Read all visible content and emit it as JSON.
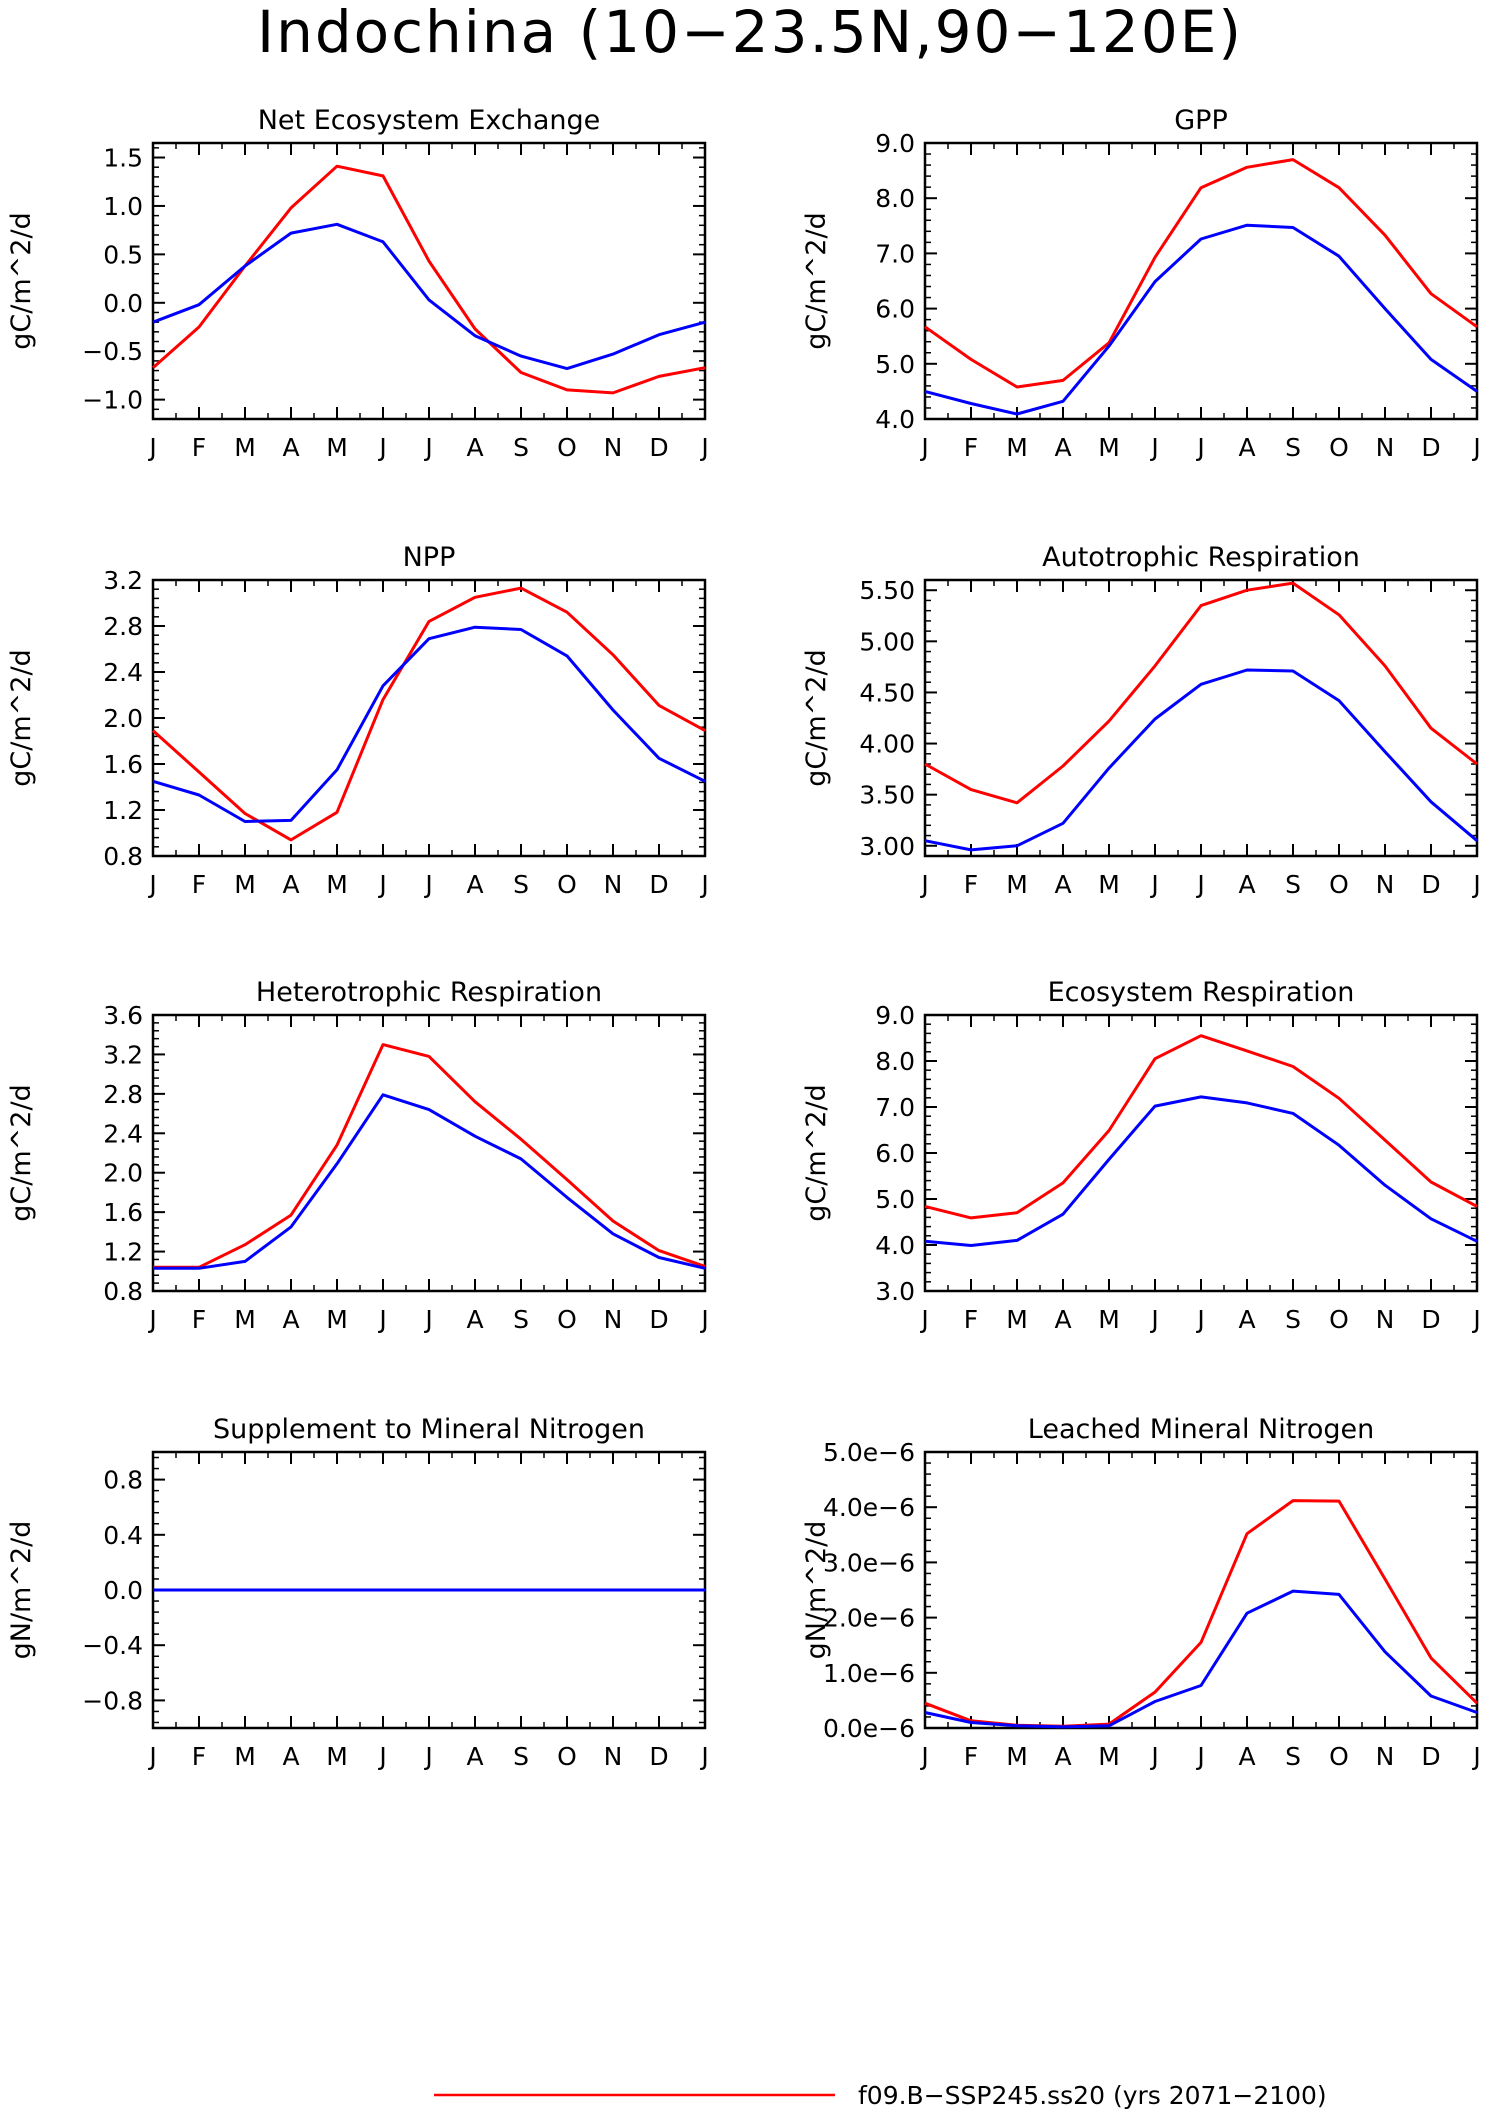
{
  "title": "Indochina (10−23.5N,90−120E)",
  "colors": {
    "series_a": "#ff0000",
    "series_b": "#0000ff",
    "axis": "#000000"
  },
  "legend": {
    "series_a_label": "f09.B−SSP245.ss20 (yrs 2071−2100)"
  },
  "months": [
    "J",
    "F",
    "M",
    "A",
    "M",
    "J",
    "J",
    "A",
    "S",
    "O",
    "N",
    "D",
    "J"
  ],
  "chart_data": [
    {
      "type": "line",
      "title": "Net Ecosystem Exchange",
      "ylabel": "gC/m^2/d",
      "ylim": [
        -1.2,
        1.65
      ],
      "yticks": [
        -1.0,
        -0.5,
        0.0,
        0.5,
        1.0,
        1.5
      ],
      "yticklabels": [
        "−1.0",
        "−0.5",
        "0.0",
        "0.5",
        "1.0",
        "1.5"
      ],
      "series": [
        {
          "color": "red",
          "values": [
            -0.67,
            -0.25,
            0.38,
            0.98,
            1.41,
            1.31,
            0.43,
            -0.27,
            -0.72,
            -0.9,
            -0.93,
            -0.76,
            -0.67
          ]
        },
        {
          "color": "blue",
          "values": [
            -0.2,
            -0.02,
            0.38,
            0.72,
            0.81,
            0.63,
            0.03,
            -0.34,
            -0.55,
            -0.68,
            -0.53,
            -0.33,
            -0.2
          ]
        }
      ]
    },
    {
      "type": "line",
      "title": "GPP",
      "ylabel": "gC/m^2/d",
      "ylim": [
        4.0,
        9.0
      ],
      "yticks": [
        4.0,
        5.0,
        6.0,
        7.0,
        8.0,
        9.0
      ],
      "yticklabels": [
        "4.0",
        "5.0",
        "6.0",
        "7.0",
        "8.0",
        "9.0"
      ],
      "series": [
        {
          "color": "red",
          "values": [
            5.67,
            5.08,
            4.58,
            4.7,
            5.38,
            6.93,
            8.19,
            8.56,
            8.7,
            8.19,
            7.33,
            6.27,
            5.67
          ]
        },
        {
          "color": "blue",
          "values": [
            4.5,
            4.28,
            4.09,
            4.32,
            5.32,
            6.49,
            7.26,
            7.51,
            7.47,
            6.95,
            6.0,
            5.08,
            4.5
          ]
        }
      ]
    },
    {
      "type": "line",
      "title": "NPP",
      "ylabel": "gC/m^2/d",
      "ylim": [
        0.8,
        3.2
      ],
      "yticks": [
        0.8,
        1.2,
        1.6,
        2.0,
        2.4,
        2.8,
        3.2
      ],
      "yticklabels": [
        "0.8",
        "1.2",
        "1.6",
        "2.0",
        "2.4",
        "2.8",
        "3.2"
      ],
      "series": [
        {
          "color": "red",
          "values": [
            1.89,
            1.53,
            1.17,
            0.94,
            1.18,
            2.16,
            2.84,
            3.05,
            3.13,
            2.92,
            2.55,
            2.11,
            1.89
          ]
        },
        {
          "color": "blue",
          "values": [
            1.45,
            1.33,
            1.1,
            1.11,
            1.55,
            2.28,
            2.69,
            2.79,
            2.77,
            2.54,
            2.07,
            1.65,
            1.45
          ]
        }
      ]
    },
    {
      "type": "line",
      "title": "Autotrophic Respiration",
      "ylabel": "gC/m^2/d",
      "ylim": [
        2.9,
        5.6
      ],
      "yticks": [
        3.0,
        3.5,
        4.0,
        4.5,
        5.0,
        5.5
      ],
      "yticklabels": [
        "3.00",
        "3.50",
        "4.00",
        "4.50",
        "5.00",
        "5.50"
      ],
      "series": [
        {
          "color": "red",
          "values": [
            3.8,
            3.55,
            3.42,
            3.78,
            4.22,
            4.76,
            5.35,
            5.5,
            5.57,
            5.26,
            4.76,
            4.15,
            3.8
          ]
        },
        {
          "color": "blue",
          "values": [
            3.05,
            2.96,
            3.0,
            3.22,
            3.76,
            4.24,
            4.58,
            4.72,
            4.71,
            4.42,
            3.92,
            3.43,
            3.05
          ]
        }
      ]
    },
    {
      "type": "line",
      "title": "Heterotrophic Respiration",
      "ylabel": "gC/m^2/d",
      "ylim": [
        0.8,
        3.6
      ],
      "yticks": [
        0.8,
        1.2,
        1.6,
        2.0,
        2.4,
        2.8,
        3.2,
        3.6
      ],
      "yticklabels": [
        "0.8",
        "1.2",
        "1.6",
        "2.0",
        "2.4",
        "2.8",
        "3.2",
        "3.6"
      ],
      "series": [
        {
          "color": "red",
          "values": [
            1.04,
            1.04,
            1.27,
            1.57,
            2.28,
            3.3,
            3.18,
            2.72,
            2.34,
            1.93,
            1.51,
            1.21,
            1.05
          ]
        },
        {
          "color": "blue",
          "values": [
            1.03,
            1.03,
            1.1,
            1.45,
            2.09,
            2.79,
            2.64,
            2.37,
            2.14,
            1.75,
            1.38,
            1.14,
            1.03
          ]
        }
      ]
    },
    {
      "type": "line",
      "title": "Ecosystem Respiration",
      "ylabel": "gC/m^2/d",
      "ylim": [
        3.0,
        9.0
      ],
      "yticks": [
        3.0,
        4.0,
        5.0,
        6.0,
        7.0,
        8.0,
        9.0
      ],
      "yticklabels": [
        "3.0",
        "4.0",
        "5.0",
        "6.0",
        "7.0",
        "8.0",
        "9.0"
      ],
      "series": [
        {
          "color": "red",
          "values": [
            4.84,
            4.59,
            4.7,
            5.35,
            6.49,
            8.05,
            8.55,
            8.22,
            7.88,
            7.19,
            6.28,
            5.37,
            4.84
          ]
        },
        {
          "color": "blue",
          "values": [
            4.08,
            3.99,
            4.1,
            4.67,
            5.86,
            7.02,
            7.22,
            7.09,
            6.86,
            6.17,
            5.3,
            4.57,
            4.08
          ]
        }
      ]
    },
    {
      "type": "line",
      "title": "Supplement to Mineral Nitrogen",
      "ylabel": "gN/m^2/d",
      "ylim": [
        -1.0,
        1.0
      ],
      "yticks": [
        -0.8,
        -0.4,
        0.0,
        0.4,
        0.8
      ],
      "yticklabels": [
        "−0.8",
        "−0.4",
        "0.0",
        "0.4",
        "0.8"
      ],
      "series": [
        {
          "color": "red",
          "values": [
            0,
            0,
            0,
            0,
            0,
            0,
            0,
            0,
            0,
            0,
            0,
            0,
            0
          ]
        },
        {
          "color": "blue",
          "values": [
            0,
            0,
            0,
            0,
            0,
            0,
            0,
            0,
            0,
            0,
            0,
            0,
            0
          ]
        }
      ]
    },
    {
      "type": "line",
      "title": "Leached Mineral Nitrogen",
      "ylabel": "gN/m^2/d",
      "ylim": [
        0.0,
        5e-06
      ],
      "yticks": [
        0.0,
        1e-06,
        2e-06,
        3e-06,
        4e-06,
        5e-06
      ],
      "yticklabels": [
        "0.0e−6",
        "1.0e−6",
        "2.0e−6",
        "3.0e−6",
        "4.0e−6",
        "5.0e−6"
      ],
      "series": [
        {
          "color": "red",
          "values": [
            4.5e-07,
            1.3e-07,
            5e-08,
            3e-08,
            7e-08,
            6.5e-07,
            1.55e-06,
            3.52e-06,
            4.12e-06,
            4.11e-06,
            2.7e-06,
            1.27e-06,
            4.5e-07
          ]
        },
        {
          "color": "blue",
          "values": [
            2.8e-07,
            1e-07,
            4e-08,
            2e-08,
            4e-08,
            4.8e-07,
            7.7e-07,
            2.08e-06,
            2.48e-06,
            2.42e-06,
            1.38e-06,
            5.8e-07,
            2.8e-07
          ]
        }
      ]
    }
  ]
}
